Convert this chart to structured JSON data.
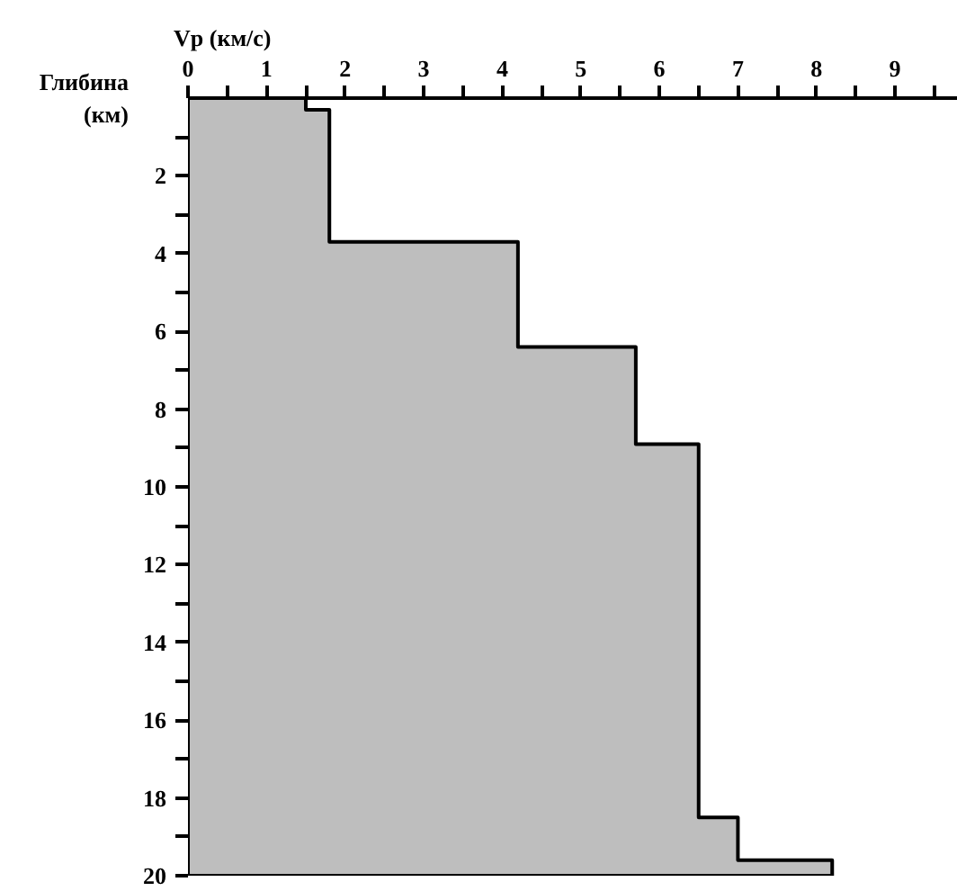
{
  "chart_data": {
    "type": "area",
    "orientation": "horizontal",
    "xlabel": "Vp (км/с)",
    "ylabel": "Глибина (км)",
    "x": [
      0,
      0.3,
      3.7,
      6.4,
      8.9,
      18.5,
      19.6,
      20
    ],
    "values": [
      1.5,
      1.8,
      4.2,
      5.7,
      6.5,
      7.0,
      8.2,
      8.2
    ],
    "color": "#bebebe",
    "xlim": [
      0,
      9.8
    ],
    "xticks": [
      0,
      {
        "value": 0.5,
        "label": null
      },
      1,
      {
        "value": 1.5,
        "label": null
      },
      2,
      {
        "value": 2.5,
        "label": null
      },
      3,
      {
        "value": 3.5,
        "label": null
      },
      4,
      {
        "value": 4.5,
        "label": null
      },
      5,
      {
        "value": 5.5,
        "label": null
      },
      6,
      {
        "value": 6.5,
        "label": null
      },
      7,
      {
        "value": 7.5,
        "label": null
      },
      8,
      {
        "value": 8.5,
        "label": null
      },
      9,
      {
        "value": 9.5,
        "label": null
      }
    ],
    "ylim": [
      20,
      0
    ],
    "yticks": [
      {
        "value": 1,
        "label": null
      },
      2,
      {
        "value": 3,
        "label": null
      },
      4,
      {
        "value": 5,
        "label": null
      },
      6,
      {
        "value": 7,
        "label": null
      },
      8,
      {
        "value": 9,
        "label": null
      },
      10,
      {
        "value": 11,
        "label": null
      },
      12,
      {
        "value": 13,
        "label": null
      },
      14,
      {
        "value": 15,
        "label": null
      },
      16,
      {
        "value": 17,
        "label": null
      },
      18,
      {
        "value": 19,
        "label": null
      },
      20
    ],
    "grid": false
  }
}
